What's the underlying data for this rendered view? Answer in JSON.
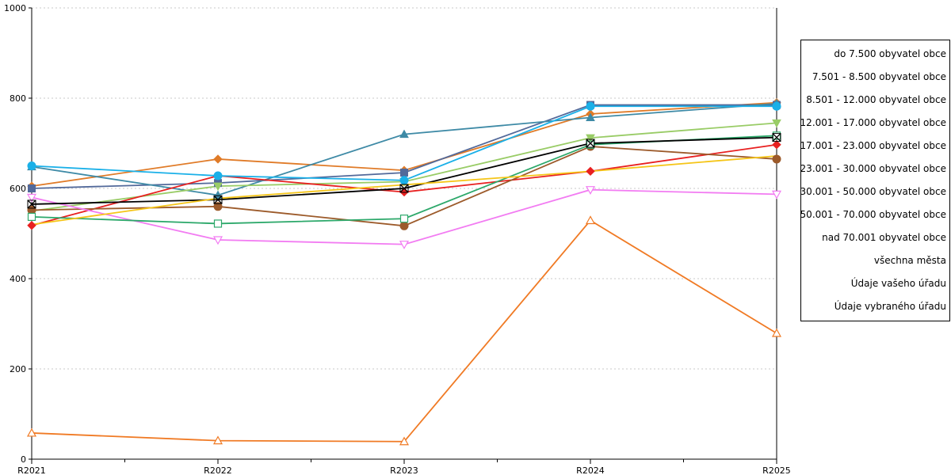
{
  "chart_data": {
    "type": "line",
    "categories": [
      "R2021",
      "R2022",
      "R2023",
      "R2024",
      "R2025"
    ],
    "ylim": [
      0,
      1000
    ],
    "yticks": [
      0,
      200,
      400,
      600,
      800,
      1000
    ],
    "ytick_labels": [
      "0",
      "200",
      "400",
      "600",
      "800",
      "1000"
    ],
    "grid": true,
    "legend_position": "right",
    "series": [
      {
        "name": "do 7.500 obyvatel obce",
        "values": [
          605,
          665,
          640,
          765,
          790
        ],
        "color": "#e07b28",
        "marker": "diamond"
      },
      {
        "name": "7.501 - 8.500 obyvatel obce",
        "values": [
          600,
          612,
          635,
          785,
          785
        ],
        "color": "#52699a",
        "marker": "square"
      },
      {
        "name": "8.501 - 12.000 obyvatel obce",
        "values": [
          648,
          585,
          720,
          757,
          788
        ],
        "color": "#3e8aa6",
        "marker": "triangle"
      },
      {
        "name": "12.001 - 17.000 obyvatel obce",
        "values": [
          550,
          605,
          615,
          712,
          745
        ],
        "color": "#99cc66",
        "marker": "triangle-down"
      },
      {
        "name": "17.001 - 23.000 obyvatel obce",
        "values": [
          518,
          628,
          592,
          638,
          697
        ],
        "color": "#e82020",
        "marker": "diamond"
      },
      {
        "name": "23.001 - 30.000 obyvatel obce",
        "values": [
          552,
          560,
          517,
          693,
          665
        ],
        "color": "#9c5a2a",
        "marker": "circle"
      },
      {
        "name": "30.001 - 50.000 obyvatel obce",
        "values": [
          580,
          486,
          476,
          597,
          587
        ],
        "color": "#f27cf2",
        "marker": "triangle-down-open"
      },
      {
        "name": "50.001 - 70.000 obyvatel obce",
        "values": [
          537,
          522,
          533,
          697,
          717
        ],
        "color": "#2ca86a",
        "marker": "square-open"
      },
      {
        "name": "nad 70.001 obyvatel obce",
        "values": [
          650,
          628,
          618,
          782,
          782
        ],
        "color": "#1ab0e8",
        "marker": "circle"
      },
      {
        "name": "všechna města",
        "values": [
          565,
          575,
          600,
          700,
          713
        ],
        "color": "#000000",
        "marker": "x"
      },
      {
        "name": "Údaje vašeho úřadu",
        "values": [
          520,
          578,
          608,
          638,
          672
        ],
        "color": "#f5c518",
        "marker": "none"
      },
      {
        "name": "Údaje vybraného úřadu",
        "values": [
          58,
          41,
          39,
          529,
          279
        ],
        "color": "#f07a24",
        "marker": "triangle-open"
      }
    ]
  }
}
